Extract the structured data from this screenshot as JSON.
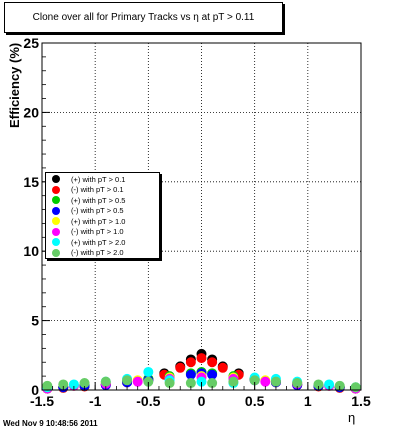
{
  "title": "Clone  over all for Primary Tracks vs    η  at pT > 0.11",
  "ylabel": "Efficiency (%)",
  "xlabel": "η",
  "timestamp": "Wed Nov  9 10:48:56 2011",
  "chart_data": {
    "type": "scatter",
    "title": "Clone  over all for Primary Tracks vs    η  at pT > 0.11",
    "xlabel": "η",
    "ylabel": "Efficiency (%)",
    "xlim": [
      -1.5,
      1.5
    ],
    "ylim": [
      0,
      25
    ],
    "xticks": [
      "-1.5",
      "-1",
      "-0.5",
      "0",
      "0.5",
      "1",
      "1.5"
    ],
    "yticks": [
      "0",
      "5",
      "10",
      "15",
      "20",
      "25"
    ],
    "grid": true,
    "legend_position": "left-middle",
    "series": [
      {
        "name": "(+) with pT > 0.1",
        "color": "#000000",
        "x": [
          -1.45,
          -1.3,
          -1.1,
          -0.9,
          -0.7,
          -0.5,
          -0.35,
          -0.2,
          -0.1,
          0.0,
          0.1,
          0.2,
          0.35,
          0.5,
          0.7,
          0.9,
          1.1,
          1.3,
          1.45
        ],
        "y": [
          0.1,
          0.2,
          0.3,
          0.4,
          0.6,
          0.8,
          1.2,
          1.7,
          2.2,
          2.6,
          2.2,
          1.7,
          1.2,
          0.8,
          0.6,
          0.4,
          0.3,
          0.2,
          0.1
        ]
      },
      {
        "name": "(-) with pT > 0.1",
        "color": "#ff0000",
        "x": [
          -1.45,
          -1.3,
          -1.1,
          -0.9,
          -0.7,
          -0.5,
          -0.35,
          -0.2,
          -0.1,
          0.0,
          0.1,
          0.2,
          0.35,
          0.5,
          0.7,
          0.9,
          1.1,
          1.3,
          1.45
        ],
        "y": [
          0.1,
          0.15,
          0.25,
          0.35,
          0.55,
          0.75,
          1.1,
          1.6,
          2.0,
          2.3,
          2.0,
          1.6,
          1.1,
          0.75,
          0.55,
          0.35,
          0.25,
          0.15,
          0.1
        ]
      },
      {
        "name": "(+) with pT > 0.5",
        "color": "#00cc00",
        "x": [
          -1.45,
          -1.3,
          -1.1,
          -0.9,
          -0.7,
          -0.5,
          -0.3,
          -0.1,
          0.0,
          0.1,
          0.3,
          0.5,
          0.7,
          0.9,
          1.1,
          1.3,
          1.45
        ],
        "y": [
          0.1,
          0.2,
          0.3,
          0.4,
          0.6,
          0.8,
          1.0,
          1.2,
          1.3,
          1.2,
          1.0,
          0.8,
          0.6,
          0.4,
          0.3,
          0.2,
          0.1
        ]
      },
      {
        "name": "(-) with pT > 0.5",
        "color": "#0000ff",
        "x": [
          -1.45,
          -1.3,
          -1.1,
          -0.9,
          -0.7,
          -0.5,
          -0.3,
          -0.1,
          0.0,
          0.1,
          0.3,
          0.5,
          0.7,
          0.9,
          1.1,
          1.3,
          1.45
        ],
        "y": [
          0.1,
          0.2,
          0.3,
          0.35,
          0.55,
          0.7,
          0.9,
          1.1,
          1.2,
          1.1,
          0.9,
          0.7,
          0.55,
          0.35,
          0.3,
          0.2,
          0.1
        ]
      },
      {
        "name": "(+) with pT > 1.0",
        "color": "#ffff00",
        "x": [
          -1.45,
          -1.2,
          -0.9,
          -0.6,
          -0.3,
          0.0,
          0.3,
          0.6,
          0.9,
          1.2,
          1.45
        ],
        "y": [
          0.1,
          0.3,
          0.5,
          0.7,
          0.9,
          1.0,
          0.9,
          0.7,
          0.5,
          0.3,
          0.1
        ]
      },
      {
        "name": "(-) with pT > 1.0",
        "color": "#ff00ff",
        "x": [
          -1.45,
          -1.2,
          -0.9,
          -0.6,
          -0.3,
          0.0,
          0.3,
          0.6,
          0.9,
          1.2,
          1.45
        ],
        "y": [
          0.1,
          0.3,
          0.45,
          0.6,
          0.8,
          0.9,
          0.8,
          0.6,
          0.45,
          0.3,
          0.1
        ]
      },
      {
        "name": "(+) with pT > 2.0",
        "color": "#00ffff",
        "x": [
          -1.45,
          -1.2,
          -0.9,
          -0.7,
          -0.5,
          -0.3,
          0.0,
          0.3,
          0.5,
          0.7,
          0.9,
          1.2,
          1.45
        ],
        "y": [
          0.2,
          0.4,
          0.6,
          0.8,
          1.3,
          0.7,
          0.6,
          0.5,
          0.9,
          0.8,
          0.6,
          0.4,
          0.2
        ]
      },
      {
        "name": "(-) with pT > 2.0",
        "color": "#66cc66",
        "x": [
          -1.45,
          -1.3,
          -1.1,
          -0.9,
          -0.7,
          -0.5,
          -0.3,
          -0.1,
          0.1,
          0.3,
          0.5,
          0.7,
          0.9,
          1.1,
          1.3,
          1.45
        ],
        "y": [
          0.3,
          0.4,
          0.5,
          0.6,
          0.7,
          0.6,
          0.5,
          0.5,
          0.5,
          0.6,
          0.7,
          0.6,
          0.5,
          0.4,
          0.3,
          0.2
        ]
      }
    ]
  }
}
